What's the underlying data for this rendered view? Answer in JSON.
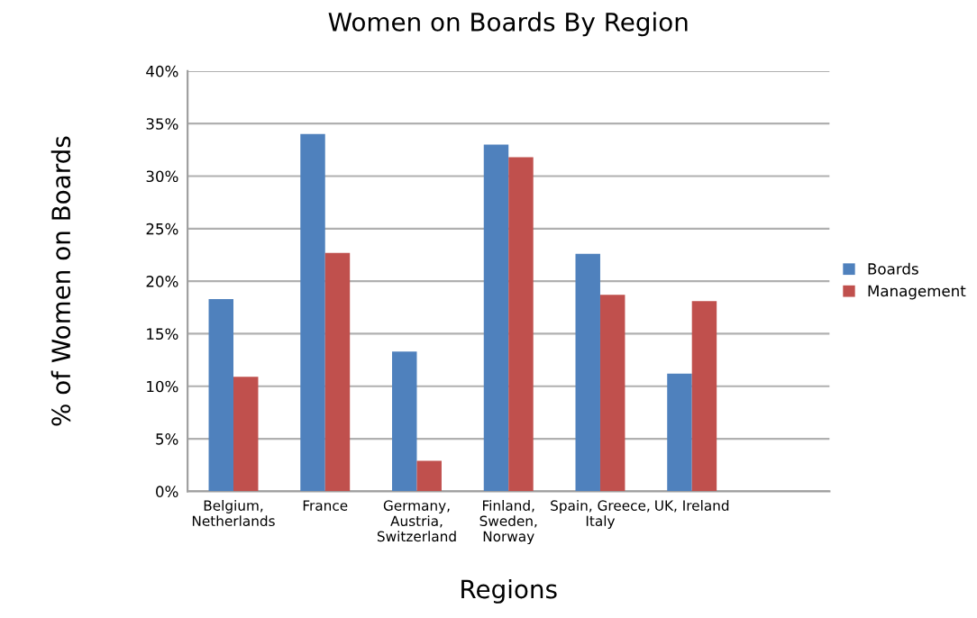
{
  "chart_data": {
    "type": "bar",
    "title": "Women on Boards By Region",
    "xlabel": "Regions",
    "ylabel": "% of Women on Boards",
    "categories": [
      "Belgium,\nNetherlands",
      "France",
      "Germany,\nAustria,\nSwitzerland",
      "Finland,\nSweden,\nNorway",
      "Spain, Greece,\nItaly",
      "UK, Ireland",
      null
    ],
    "series": [
      {
        "name": "Boards",
        "color": "#4f81bd",
        "values": [
          18.3,
          34.0,
          13.3,
          33.0,
          22.6,
          11.2,
          null
        ]
      },
      {
        "name": "Management",
        "color": "#c0504d",
        "values": [
          10.9,
          22.7,
          2.9,
          31.8,
          18.7,
          18.1,
          null
        ]
      }
    ],
    "ylim": [
      0,
      40
    ],
    "yticks": [
      {
        "value": 0,
        "label": "0%"
      },
      {
        "value": 5,
        "label": "5%"
      },
      {
        "value": 10,
        "label": "10%"
      },
      {
        "value": 15,
        "label": "15%"
      },
      {
        "value": 20,
        "label": "20%"
      },
      {
        "value": 25,
        "label": "25%"
      },
      {
        "value": 30,
        "label": "30%"
      },
      {
        "value": 35,
        "label": "35%"
      },
      {
        "value": 40,
        "label": "40%"
      }
    ],
    "grid": "y",
    "legend": "right"
  }
}
